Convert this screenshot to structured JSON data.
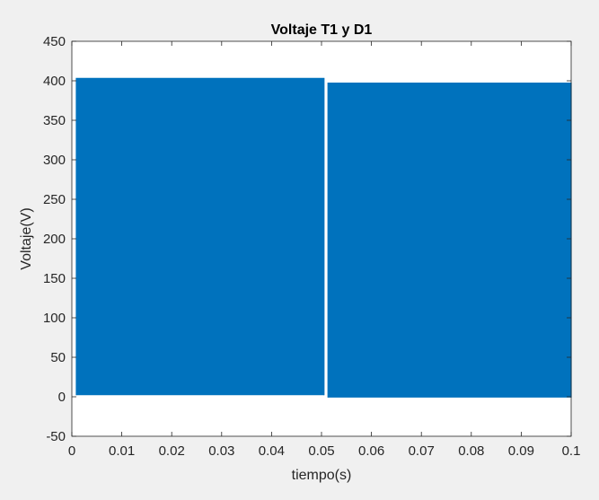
{
  "chart_data": {
    "type": "line",
    "title": "Voltaje T1 y D1",
    "xlabel": "tiempo(s)",
    "ylabel": "Voltaje(V)",
    "xlim": [
      0,
      0.1
    ],
    "ylim": [
      -50,
      450
    ],
    "xticks": [
      0,
      0.01,
      0.02,
      0.03,
      0.04,
      0.05,
      0.06,
      0.07,
      0.08,
      0.09,
      0.1
    ],
    "xtick_labels": [
      "0",
      "0.01",
      "0.02",
      "0.03",
      "0.04",
      "0.05",
      "0.06",
      "0.07",
      "0.08",
      "0.09",
      "0.1"
    ],
    "yticks": [
      -50,
      0,
      50,
      100,
      150,
      200,
      250,
      300,
      350,
      400,
      450
    ],
    "ytick_labels": [
      "-50",
      "0",
      "50",
      "100",
      "150",
      "200",
      "250",
      "300",
      "350",
      "400",
      "450"
    ],
    "grid": false,
    "legend": "none",
    "colors": {
      "series": "#0072BD",
      "plot_bg": "#ffffff",
      "figure_bg": "#f0f0f0",
      "axes": "#262626"
    },
    "series": [
      {
        "style": "rapid switching square wave (filled envelope)",
        "segments": [
          {
            "x": [
              0.0009,
              0.0505
            ],
            "low": 2,
            "high": 403
          },
          {
            "x": [
              0.0513,
              0.1
            ],
            "low": -1,
            "high": 397
          }
        ]
      }
    ]
  }
}
